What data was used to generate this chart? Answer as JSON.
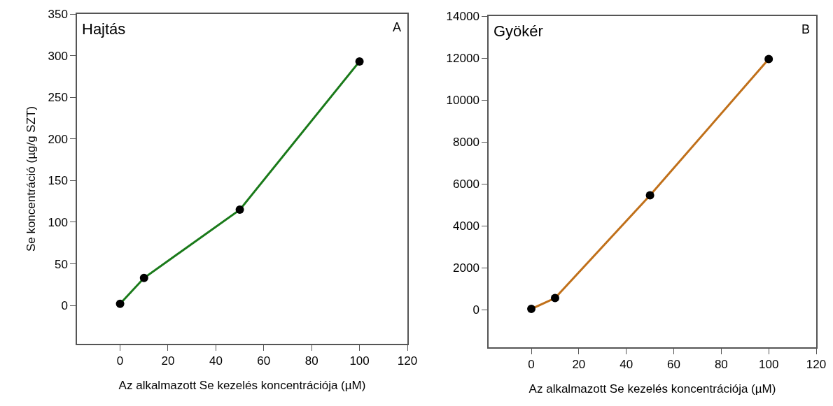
{
  "chart_data": [
    {
      "type": "line",
      "title": "Hajtás",
      "annotations": [
        "A"
      ],
      "xlabel": "Az alkalmazott Se kezelés koncentrációja (µM)",
      "ylabel": "Se koncentráció (µg/g SZT)",
      "x": [
        0,
        10,
        50,
        100
      ],
      "series": [
        {
          "color": "#1a7a1a",
          "values": [
            2,
            33,
            115,
            293
          ]
        }
      ],
      "xlim": [
        -18,
        120
      ],
      "xticks": [
        0,
        20,
        40,
        60,
        80,
        100,
        120
      ],
      "ylim": [
        -46,
        350
      ],
      "yticks": [
        0,
        50,
        100,
        150,
        200,
        250,
        300,
        350
      ],
      "marker": "circle",
      "line_style": "solid"
    },
    {
      "type": "line",
      "title": "Gyökér",
      "annotations": [
        "B"
      ],
      "xlabel": "Az alkalmazott Se kezelés koncentrációja (µM)",
      "x": [
        0,
        10,
        50,
        100
      ],
      "series": [
        {
          "color": "#c0701a",
          "values": [
            30,
            550,
            5450,
            11950
          ]
        }
      ],
      "xlim": [
        -18,
        120
      ],
      "xticks": [
        0,
        20,
        40,
        60,
        80,
        100,
        120
      ],
      "ylim": [
        -1800,
        14000
      ],
      "yticks": [
        0,
        2000,
        4000,
        6000,
        8000,
        10000,
        12000,
        14000
      ],
      "marker": "circle",
      "line_style": "solid"
    }
  ]
}
